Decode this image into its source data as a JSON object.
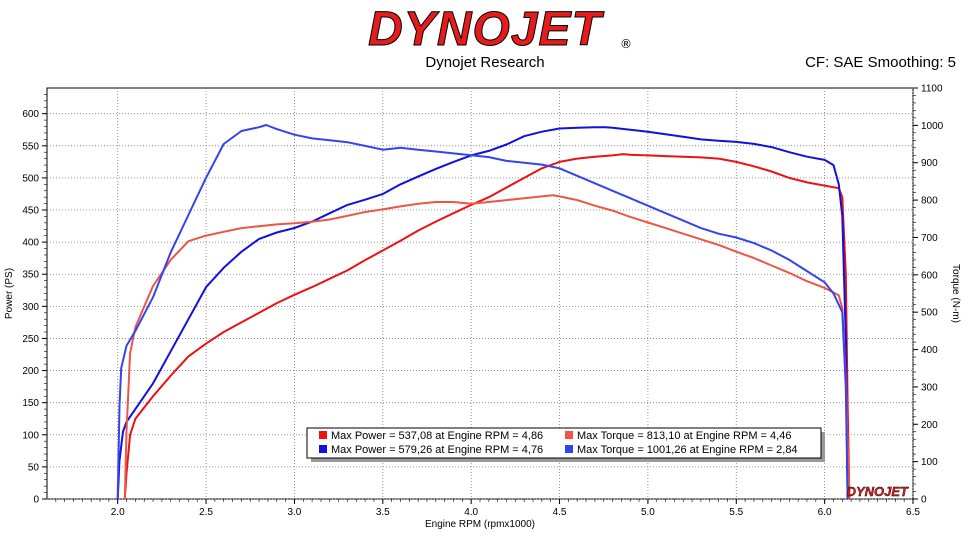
{
  "header": {
    "logo_text": "DYNOJET",
    "subtitle": "Dynojet Research",
    "cf_info": "CF: SAE Smoothing: 5"
  },
  "watermark_text": "DYNOJET",
  "colors": {
    "run1_power": "#ee1111",
    "run1_torque": "#ee5544",
    "run2_power": "#1010e0",
    "run2_torque": "#3344ee",
    "logo": "#e41c1c",
    "grid": "#7a7a7a"
  },
  "chart_data": {
    "type": "line",
    "xlabel": "Engine RPM (rpmx1000)",
    "ylabel_left": "Power (PS)",
    "ylabel_right": "Torque (N-m)",
    "xlim": [
      1.6,
      6.5
    ],
    "ylim_left": [
      0,
      640
    ],
    "ylim_right": [
      0,
      1100
    ],
    "x_ticks": [
      "2.0",
      "2.5",
      "3.0",
      "3.5",
      "4.0",
      "4.5",
      "5.0",
      "5.5",
      "6.0",
      "6.5"
    ],
    "y_left_ticks": [
      "0",
      "50",
      "100",
      "150",
      "200",
      "250",
      "300",
      "350",
      "400",
      "450",
      "500",
      "550",
      "600"
    ],
    "y_right_ticks": [
      "0",
      "100",
      "200",
      "300",
      "400",
      "500",
      "600",
      "700",
      "800",
      "900",
      "1000",
      "1100"
    ],
    "grid": true,
    "legend_position": "bottom-center",
    "series": [
      {
        "name": "Max Power = 537,08 at Engine RPM = 4,86",
        "axis": "left",
        "x": [
          2.04,
          2.05,
          2.07,
          2.1,
          2.2,
          2.3,
          2.4,
          2.5,
          2.6,
          2.7,
          2.8,
          2.9,
          3.0,
          3.1,
          3.2,
          3.3,
          3.4,
          3.5,
          3.6,
          3.7,
          3.8,
          3.9,
          4.0,
          4.1,
          4.2,
          4.3,
          4.4,
          4.5,
          4.6,
          4.7,
          4.8,
          4.86,
          4.9,
          5.0,
          5.1,
          5.2,
          5.3,
          5.4,
          5.5,
          5.6,
          5.7,
          5.8,
          5.9,
          6.0,
          6.08,
          6.1,
          6.12,
          6.13,
          6.14
        ],
        "y": [
          0,
          40,
          100,
          125,
          160,
          192,
          222,
          242,
          260,
          275,
          290,
          305,
          318,
          330,
          343,
          356,
          372,
          387,
          402,
          418,
          432,
          445,
          458,
          470,
          485,
          500,
          515,
          525,
          530,
          533,
          535,
          537,
          536,
          535,
          534,
          533,
          532,
          530,
          525,
          518,
          510,
          500,
          493,
          488,
          484,
          470,
          350,
          150,
          0
        ]
      },
      {
        "name": "Max Power = 579,26 at Engine RPM = 4,76",
        "axis": "left",
        "x": [
          2.0,
          2.01,
          2.03,
          2.05,
          2.1,
          2.2,
          2.3,
          2.4,
          2.5,
          2.6,
          2.7,
          2.8,
          2.9,
          3.0,
          3.1,
          3.2,
          3.3,
          3.4,
          3.5,
          3.6,
          3.7,
          3.8,
          3.9,
          4.0,
          4.1,
          4.2,
          4.3,
          4.4,
          4.5,
          4.6,
          4.7,
          4.76,
          4.8,
          4.9,
          5.0,
          5.1,
          5.2,
          5.3,
          5.4,
          5.5,
          5.6,
          5.7,
          5.8,
          5.9,
          6.0,
          6.05,
          6.08,
          6.1,
          6.12,
          6.13
        ],
        "y": [
          0,
          60,
          105,
          120,
          140,
          180,
          230,
          280,
          330,
          360,
          385,
          405,
          415,
          422,
          432,
          445,
          458,
          466,
          475,
          490,
          502,
          514,
          525,
          535,
          542,
          552,
          565,
          572,
          577,
          578,
          579,
          579,
          578,
          575,
          572,
          568,
          564,
          560,
          558,
          556,
          553,
          548,
          540,
          533,
          528,
          520,
          490,
          440,
          250,
          0
        ]
      },
      {
        "name": "Max Torque = 813,10 at Engine RPM = 4,46",
        "axis": "right",
        "x": [
          2.04,
          2.05,
          2.07,
          2.1,
          2.2,
          2.3,
          2.4,
          2.5,
          2.6,
          2.7,
          2.8,
          2.9,
          3.0,
          3.1,
          3.2,
          3.3,
          3.4,
          3.5,
          3.6,
          3.7,
          3.8,
          3.9,
          4.0,
          4.1,
          4.2,
          4.3,
          4.4,
          4.46,
          4.5,
          4.6,
          4.7,
          4.8,
          4.9,
          5.0,
          5.1,
          5.2,
          5.3,
          5.4,
          5.5,
          5.6,
          5.7,
          5.8,
          5.9,
          6.0,
          6.08,
          6.1,
          6.12,
          6.13,
          6.14
        ],
        "y": [
          0,
          180,
          390,
          460,
          570,
          640,
          690,
          705,
          715,
          725,
          730,
          735,
          738,
          742,
          748,
          758,
          768,
          775,
          783,
          790,
          795,
          795,
          790,
          795,
          800,
          805,
          810,
          813,
          810,
          800,
          785,
          772,
          755,
          740,
          725,
          710,
          695,
          680,
          662,
          645,
          625,
          605,
          583,
          565,
          545,
          510,
          320,
          150,
          0
        ]
      },
      {
        "name": "Max Torque = 1001,26 at Engine RPM = 2,84",
        "axis": "right",
        "x": [
          2.0,
          2.01,
          2.02,
          2.05,
          2.1,
          2.2,
          2.3,
          2.4,
          2.5,
          2.6,
          2.7,
          2.8,
          2.84,
          2.9,
          3.0,
          3.1,
          3.2,
          3.3,
          3.4,
          3.5,
          3.6,
          3.7,
          3.8,
          3.9,
          4.0,
          4.1,
          4.2,
          4.3,
          4.4,
          4.5,
          4.6,
          4.7,
          4.8,
          4.9,
          5.0,
          5.1,
          5.2,
          5.3,
          5.4,
          5.5,
          5.6,
          5.7,
          5.8,
          5.9,
          6.0,
          6.05,
          6.08,
          6.1,
          6.12,
          6.13
        ],
        "y": [
          0,
          250,
          350,
          410,
          450,
          540,
          660,
          760,
          860,
          950,
          985,
          995,
          1001,
          990,
          975,
          965,
          960,
          955,
          945,
          935,
          940,
          935,
          930,
          925,
          920,
          915,
          905,
          900,
          895,
          885,
          865,
          845,
          825,
          805,
          785,
          765,
          745,
          725,
          710,
          700,
          685,
          665,
          640,
          610,
          580,
          550,
          520,
          500,
          300,
          0
        ]
      }
    ]
  }
}
